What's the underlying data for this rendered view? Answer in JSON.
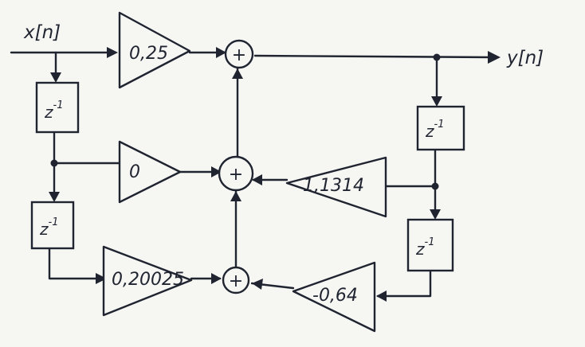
{
  "signals": {
    "input": "x[n]",
    "output": "y[n]"
  },
  "gains": {
    "b0": "0,25",
    "b1": "0",
    "b2": "0,20025",
    "a1": "1,1314",
    "a2": "-0,64"
  },
  "delay": {
    "base": "z",
    "exponent": "-1"
  },
  "adder_symbol": "+"
}
